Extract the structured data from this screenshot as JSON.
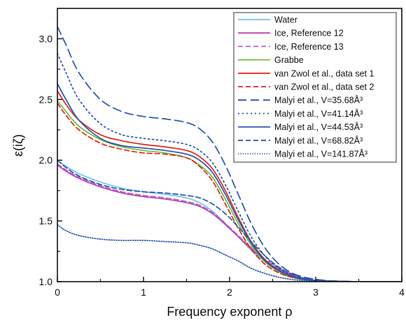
{
  "chart_data": {
    "type": "line",
    "xlabel": "Frequency exponent ρ",
    "ylabel": "ε(iζ)",
    "xlim": [
      0,
      4
    ],
    "ylim": [
      1.0,
      3.25
    ],
    "xticks": [
      "0",
      "1",
      "2",
      "3",
      "4"
    ],
    "yticks": [
      "1.0",
      "1.5",
      "2.0",
      "2.5",
      "3.0"
    ],
    "legend_position": "top-right",
    "grid": false,
    "series": [
      {
        "name": "Water",
        "color": "#6ec6e6",
        "dash": "solid",
        "x": [
          0,
          0.1,
          0.25,
          0.5,
          0.75,
          1.0,
          1.25,
          1.5,
          1.65,
          1.8,
          1.95,
          2.1,
          2.25,
          2.4,
          2.55,
          2.7,
          2.85,
          3.0,
          3.2,
          3.5,
          4.0
        ],
        "y": [
          2.0,
          1.95,
          1.89,
          1.82,
          1.77,
          1.74,
          1.72,
          1.69,
          1.65,
          1.58,
          1.48,
          1.37,
          1.26,
          1.17,
          1.1,
          1.05,
          1.02,
          1.01,
          1.005,
          1.0,
          1.0
        ]
      },
      {
        "name": "Ice, Reference 12",
        "color": "#b546b5",
        "dash": "solid",
        "x": [
          0,
          0.1,
          0.25,
          0.5,
          0.75,
          1.0,
          1.25,
          1.5,
          1.65,
          1.8,
          1.95,
          2.1,
          2.25,
          2.4,
          2.55,
          2.7,
          2.85,
          3.0,
          3.2,
          3.5,
          4.0
        ],
        "y": [
          1.96,
          1.91,
          1.85,
          1.78,
          1.73,
          1.7,
          1.68,
          1.65,
          1.62,
          1.56,
          1.47,
          1.37,
          1.27,
          1.18,
          1.11,
          1.06,
          1.03,
          1.01,
          1.005,
          1.0,
          1.0
        ]
      },
      {
        "name": "Ice, Reference 13",
        "color": "#c35bc3",
        "dash": "dashed",
        "x": [
          0,
          0.1,
          0.25,
          0.5,
          0.75,
          1.0,
          1.25,
          1.5,
          1.65,
          1.8,
          1.95,
          2.1,
          2.25,
          2.4,
          2.55,
          2.7,
          2.85,
          3.0,
          3.2,
          3.5,
          4.0
        ],
        "y": [
          1.97,
          1.92,
          1.86,
          1.79,
          1.74,
          1.71,
          1.69,
          1.66,
          1.63,
          1.57,
          1.48,
          1.38,
          1.28,
          1.19,
          1.12,
          1.07,
          1.03,
          1.01,
          1.005,
          1.0,
          1.0
        ]
      },
      {
        "name": "Grabbe",
        "color": "#6cbf3a",
        "dash": "solid",
        "x": [
          0,
          0.1,
          0.25,
          0.5,
          0.75,
          1.0,
          1.25,
          1.5,
          1.65,
          1.8,
          1.95,
          2.1,
          2.25,
          2.4,
          2.55,
          2.7,
          2.85,
          3.0,
          3.2,
          3.5,
          4.0
        ],
        "y": [
          2.49,
          2.4,
          2.28,
          2.17,
          2.11,
          2.08,
          2.06,
          2.02,
          1.96,
          1.86,
          1.68,
          1.48,
          1.3,
          1.17,
          1.09,
          1.04,
          1.02,
          1.01,
          1.005,
          1.0,
          1.0
        ]
      },
      {
        "name": "van Zwol et al., data set 1",
        "color": "#e3261b",
        "dash": "solid",
        "x": [
          0,
          0.1,
          0.25,
          0.5,
          0.75,
          1.0,
          1.25,
          1.5,
          1.65,
          1.8,
          1.95,
          2.1,
          2.25,
          2.4,
          2.55,
          2.7,
          2.85,
          3.0,
          3.2,
          3.5,
          4.0
        ],
        "y": [
          2.57,
          2.46,
          2.33,
          2.21,
          2.16,
          2.13,
          2.11,
          2.08,
          2.03,
          1.93,
          1.75,
          1.53,
          1.33,
          1.19,
          1.1,
          1.05,
          1.02,
          1.01,
          1.005,
          1.0,
          1.0
        ]
      },
      {
        "name": "van Zwol et al., data set 2",
        "color": "#e3261b",
        "dash": "dashed",
        "x": [
          0,
          0.1,
          0.25,
          0.5,
          0.75,
          1.0,
          1.25,
          1.5,
          1.65,
          1.8,
          1.95,
          2.1,
          2.25,
          2.4,
          2.55,
          2.7,
          2.85,
          3.0,
          3.2,
          3.5,
          4.0
        ],
        "y": [
          2.47,
          2.37,
          2.25,
          2.14,
          2.09,
          2.06,
          2.05,
          2.02,
          1.95,
          1.83,
          1.64,
          1.44,
          1.27,
          1.15,
          1.08,
          1.04,
          1.02,
          1.01,
          1.005,
          1.0,
          1.0
        ]
      },
      {
        "name": "Malyi et al., V=35.68Å³",
        "color": "#2756b0",
        "dash": "longdash",
        "x": [
          0,
          0.1,
          0.25,
          0.5,
          0.75,
          1.0,
          1.25,
          1.5,
          1.65,
          1.8,
          1.95,
          2.1,
          2.25,
          2.4,
          2.55,
          2.7,
          2.85,
          3.0,
          3.2,
          3.5,
          4.0
        ],
        "y": [
          3.1,
          2.95,
          2.72,
          2.5,
          2.4,
          2.36,
          2.34,
          2.31,
          2.26,
          2.15,
          1.96,
          1.72,
          1.48,
          1.29,
          1.16,
          1.08,
          1.04,
          1.02,
          1.005,
          1.0,
          1.0
        ]
      },
      {
        "name": "Malyi et al., V=41.14Å³",
        "color": "#2756b0",
        "dash": "dotted",
        "x": [
          0,
          0.1,
          0.25,
          0.5,
          0.75,
          1.0,
          1.25,
          1.5,
          1.65,
          1.8,
          1.95,
          2.1,
          2.25,
          2.4,
          2.55,
          2.7,
          2.85,
          3.0,
          3.2,
          3.5,
          4.0
        ],
        "y": [
          2.88,
          2.72,
          2.5,
          2.3,
          2.21,
          2.18,
          2.16,
          2.13,
          2.08,
          1.98,
          1.8,
          1.58,
          1.37,
          1.22,
          1.12,
          1.06,
          1.03,
          1.01,
          1.005,
          1.0,
          1.0
        ]
      },
      {
        "name": "Malyi et al., V=44.53Å³",
        "color": "#2756b0",
        "dash": "solid",
        "x": [
          0,
          0.1,
          0.25,
          0.5,
          0.75,
          1.0,
          1.25,
          1.5,
          1.65,
          1.8,
          1.95,
          2.1,
          2.25,
          2.4,
          2.55,
          2.7,
          2.85,
          3.0,
          3.2,
          3.5,
          4.0
        ],
        "y": [
          2.63,
          2.5,
          2.33,
          2.18,
          2.12,
          2.1,
          2.08,
          2.05,
          2.0,
          1.9,
          1.72,
          1.51,
          1.32,
          1.18,
          1.1,
          1.05,
          1.02,
          1.01,
          1.005,
          1.0,
          1.0
        ]
      },
      {
        "name": "Malyi et al., V=68.82Å³",
        "color": "#2756b0",
        "dash": "dashed",
        "x": [
          0,
          0.1,
          0.25,
          0.5,
          0.75,
          1.0,
          1.25,
          1.5,
          1.65,
          1.8,
          1.95,
          2.1,
          2.25,
          2.4,
          2.55,
          2.7,
          2.85,
          3.0,
          3.2,
          3.5,
          4.0
        ],
        "y": [
          2.0,
          1.94,
          1.87,
          1.8,
          1.76,
          1.74,
          1.73,
          1.71,
          1.69,
          1.64,
          1.56,
          1.45,
          1.33,
          1.22,
          1.13,
          1.07,
          1.03,
          1.01,
          1.005,
          1.0,
          1.0
        ]
      },
      {
        "name": "Malyi et al., V=141.87Å³",
        "color": "#2756b0",
        "dash": "finedot",
        "x": [
          0,
          0.1,
          0.25,
          0.5,
          0.75,
          1.0,
          1.25,
          1.5,
          1.65,
          1.8,
          1.95,
          2.1,
          2.25,
          2.4,
          2.55,
          2.7,
          2.85,
          3.0,
          3.2,
          3.5,
          4.0
        ],
        "y": [
          1.47,
          1.42,
          1.38,
          1.35,
          1.34,
          1.34,
          1.33,
          1.32,
          1.3,
          1.27,
          1.22,
          1.17,
          1.11,
          1.07,
          1.04,
          1.02,
          1.01,
          1.005,
          1.0,
          1.0,
          1.0
        ]
      }
    ]
  }
}
